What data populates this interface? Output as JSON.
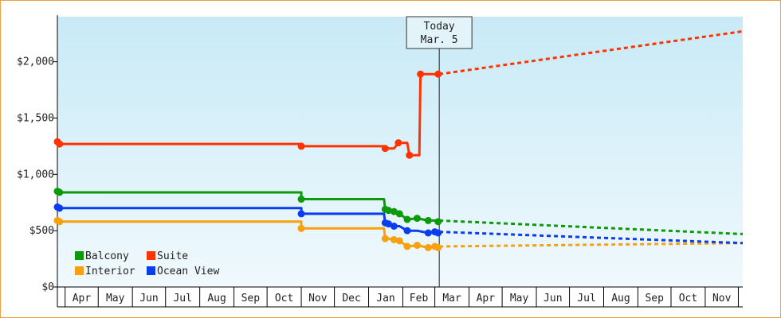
{
  "chart_data": {
    "type": "line",
    "title": "",
    "xlabel": "",
    "ylabel": "",
    "ylim": [
      0,
      2400
    ],
    "yticks": [
      {
        "value": 0,
        "label": "$0"
      },
      {
        "value": 500,
        "label": "$500"
      },
      {
        "value": 1000,
        "label": "$1,000"
      },
      {
        "value": 1500,
        "label": "$1,500"
      },
      {
        "value": 2000,
        "label": "$2,000"
      }
    ],
    "x_axis": {
      "start": "2019-03-25",
      "end": "2020-12-05",
      "month_labels": [
        {
          "label": "Apr",
          "from": "2019-04-01",
          "to": "2019-05-01"
        },
        {
          "label": "May",
          "from": "2019-05-01",
          "to": "2019-06-01"
        },
        {
          "label": "Jun",
          "from": "2019-06-01",
          "to": "2019-07-01"
        },
        {
          "label": "Jul",
          "from": "2019-07-01",
          "to": "2019-08-01"
        },
        {
          "label": "Aug",
          "from": "2019-08-01",
          "to": "2019-09-01"
        },
        {
          "label": "Sep",
          "from": "2019-09-01",
          "to": "2019-10-01"
        },
        {
          "label": "Oct",
          "from": "2019-10-01",
          "to": "2019-11-01"
        },
        {
          "label": "Nov",
          "from": "2019-11-01",
          "to": "2019-12-01"
        },
        {
          "label": "Dec",
          "from": "2019-12-01",
          "to": "2020-01-01"
        },
        {
          "label": "Jan",
          "from": "2020-01-01",
          "to": "2020-02-01"
        },
        {
          "label": "Feb",
          "from": "2020-02-01",
          "to": "2020-03-01"
        },
        {
          "label": "Mar",
          "from": "2020-03-01",
          "to": "2020-04-01"
        },
        {
          "label": "Apr",
          "from": "2020-04-01",
          "to": "2020-05-01"
        },
        {
          "label": "May",
          "from": "2020-05-01",
          "to": "2020-06-01"
        },
        {
          "label": "Jun",
          "from": "2020-06-01",
          "to": "2020-07-01"
        },
        {
          "label": "Jul",
          "from": "2020-07-01",
          "to": "2020-08-01"
        },
        {
          "label": "Aug",
          "from": "2020-08-01",
          "to": "2020-09-01"
        },
        {
          "label": "Sep",
          "from": "2020-09-01",
          "to": "2020-10-01"
        },
        {
          "label": "Oct",
          "from": "2020-10-01",
          "to": "2020-11-01"
        },
        {
          "label": "Nov",
          "from": "2020-11-01",
          "to": "2020-12-01"
        }
      ]
    },
    "today": {
      "date": "2020-03-05",
      "line1": "Today",
      "line2": "Mar. 5"
    },
    "grid": false,
    "legend": {
      "placement": "bottom-left",
      "columns": 2
    },
    "series": [
      {
        "name": "Balcony",
        "color": "#0a9a0a",
        "points": [
          [
            "2019-03-25",
            850
          ],
          [
            "2019-03-27",
            840
          ],
          [
            "2019-11-01",
            840
          ],
          [
            "2019-11-01",
            780
          ],
          [
            "2020-01-15",
            780
          ],
          [
            "2020-01-16",
            690
          ],
          [
            "2020-01-19",
            680
          ],
          [
            "2020-01-24",
            670
          ],
          [
            "2020-01-29",
            650
          ],
          [
            "2020-02-05",
            600
          ],
          [
            "2020-02-14",
            610
          ],
          [
            "2020-02-24",
            590
          ],
          [
            "2020-03-01",
            590
          ],
          [
            "2020-03-04",
            580
          ]
        ],
        "projection": [
          [
            "2020-03-05",
            590
          ],
          [
            "2020-12-05",
            470
          ]
        ]
      },
      {
        "name": "Suite",
        "color": "#ff3300",
        "points": [
          [
            "2019-03-25",
            1290
          ],
          [
            "2019-03-27",
            1270
          ],
          [
            "2019-11-01",
            1270
          ],
          [
            "2019-11-01",
            1250
          ],
          [
            "2020-01-15",
            1250
          ],
          [
            "2020-01-16",
            1230
          ],
          [
            "2020-01-19",
            1230
          ],
          [
            "2020-01-24",
            1230
          ],
          [
            "2020-01-28",
            1280
          ],
          [
            "2020-02-05",
            1280
          ],
          [
            "2020-02-07",
            1170
          ],
          [
            "2020-02-16",
            1170
          ],
          [
            "2020-02-17",
            1890
          ],
          [
            "2020-02-24",
            1890
          ],
          [
            "2020-03-04",
            1890
          ]
        ],
        "projection": [
          [
            "2020-03-05",
            1890
          ],
          [
            "2020-12-05",
            2270
          ]
        ]
      },
      {
        "name": "Interior",
        "color": "#f8a010",
        "points": [
          [
            "2019-03-25",
            590
          ],
          [
            "2019-03-27",
            580
          ],
          [
            "2019-11-01",
            580
          ],
          [
            "2019-11-01",
            520
          ],
          [
            "2020-01-15",
            520
          ],
          [
            "2020-01-16",
            430
          ],
          [
            "2020-01-19",
            430
          ],
          [
            "2020-01-24",
            420
          ],
          [
            "2020-01-29",
            410
          ],
          [
            "2020-02-05",
            360
          ],
          [
            "2020-02-14",
            370
          ],
          [
            "2020-02-24",
            350
          ],
          [
            "2020-03-01",
            360
          ],
          [
            "2020-03-04",
            350
          ]
        ],
        "projection": [
          [
            "2020-03-05",
            360
          ],
          [
            "2020-12-05",
            390
          ]
        ]
      },
      {
        "name": "Ocean View",
        "color": "#0a3cf0",
        "points": [
          [
            "2019-03-25",
            710
          ],
          [
            "2019-03-27",
            700
          ],
          [
            "2019-11-01",
            700
          ],
          [
            "2019-11-01",
            650
          ],
          [
            "2020-01-15",
            650
          ],
          [
            "2020-01-16",
            570
          ],
          [
            "2020-01-19",
            560
          ],
          [
            "2020-01-24",
            540
          ],
          [
            "2020-01-29",
            540
          ],
          [
            "2020-02-05",
            500
          ],
          [
            "2020-02-14",
            500
          ],
          [
            "2020-02-24",
            480
          ],
          [
            "2020-03-01",
            490
          ],
          [
            "2020-03-04",
            480
          ]
        ],
        "projection": [
          [
            "2020-03-05",
            490
          ],
          [
            "2020-12-05",
            390
          ]
        ]
      }
    ]
  }
}
